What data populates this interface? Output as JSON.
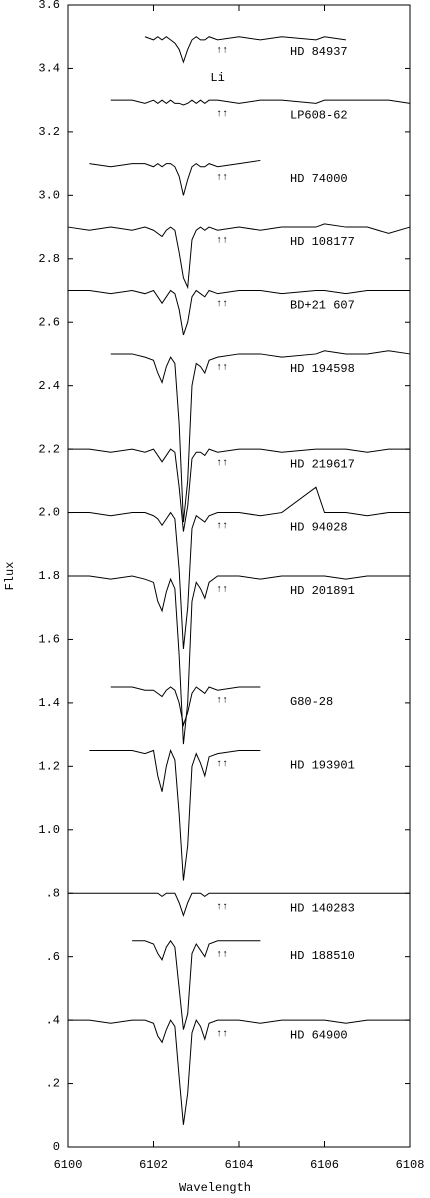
{
  "chart_data": {
    "type": "line",
    "xlabel": "Wavelength",
    "ylabel": "Flux",
    "xlim": [
      6100,
      6108
    ],
    "ylim": [
      0,
      3.6
    ],
    "xticks": [
      6100,
      6102,
      6104,
      6106,
      6108
    ],
    "yticks": [
      0,
      {
        "value": 0.2,
        "label": ".2"
      },
      {
        "value": 0.4,
        "label": ".4"
      },
      {
        "value": 0.6,
        "label": ".6"
      },
      {
        "value": 0.8,
        "label": ".8"
      },
      {
        "value": 1,
        "label": "1.0"
      },
      1.2,
      1.4,
      1.6,
      1.8,
      {
        "value": 2,
        "label": "2.0"
      },
      2.2,
      2.4,
      2.6,
      2.8,
      {
        "value": 3,
        "label": "3.0"
      },
      3.2,
      3.4,
      3.6
    ],
    "marker": "↑↑",
    "annotations": [
      {
        "text": "Li",
        "x": 6103.5,
        "y": 3.37
      }
    ],
    "color": "#000000",
    "x": [
      6100,
      6100.5,
      6101,
      6101.5,
      6101.8,
      6102.0,
      6102.1,
      6102.2,
      6102.3,
      6102.4,
      6102.5,
      6102.6,
      6102.7,
      6102.8,
      6102.9,
      6103.0,
      6103.1,
      6103.2,
      6103.3,
      6103.5,
      6104.0,
      6104.5,
      6105,
      6105.8,
      6106,
      6106.5,
      6107,
      6107.5,
      6108
    ],
    "series": [
      {
        "name": "HD 84937",
        "values": [
          null,
          null,
          null,
          null,
          3.5,
          3.49,
          3.5,
          3.49,
          3.5,
          3.49,
          3.48,
          3.46,
          3.42,
          3.46,
          3.49,
          3.5,
          3.49,
          3.49,
          3.5,
          3.49,
          3.5,
          3.49,
          3.5,
          3.49,
          3.5,
          3.49,
          null,
          null,
          null
        ]
      },
      {
        "name": "LP608-62",
        "values": [
          null,
          null,
          3.3,
          3.3,
          3.29,
          3.3,
          3.29,
          3.3,
          3.29,
          3.3,
          3.29,
          3.29,
          3.285,
          3.29,
          3.3,
          3.29,
          3.3,
          3.29,
          3.3,
          3.3,
          3.29,
          3.3,
          3.3,
          3.29,
          3.3,
          3.3,
          3.3,
          3.3,
          3.29
        ]
      },
      {
        "name": "HD 74000",
        "values": [
          null,
          3.1,
          3.09,
          3.1,
          3.1,
          3.09,
          3.1,
          3.09,
          3.1,
          3.1,
          3.09,
          3.06,
          3.0,
          3.05,
          3.09,
          3.1,
          3.09,
          3.09,
          3.1,
          3.09,
          3.1,
          3.11,
          null,
          null,
          null,
          null,
          null,
          null,
          null
        ]
      },
      {
        "name": "HD 108177",
        "values": [
          2.9,
          2.89,
          2.9,
          2.89,
          2.9,
          2.89,
          2.88,
          2.87,
          2.89,
          2.9,
          2.89,
          2.82,
          2.74,
          2.71,
          2.86,
          2.89,
          2.9,
          2.89,
          2.9,
          2.89,
          2.9,
          2.89,
          2.9,
          2.9,
          2.91,
          2.9,
          2.9,
          2.88,
          2.9
        ]
      },
      {
        "name": "BD+21 607",
        "values": [
          2.7,
          2.7,
          2.69,
          2.7,
          2.69,
          2.7,
          2.68,
          2.66,
          2.68,
          2.7,
          2.69,
          2.64,
          2.56,
          2.6,
          2.68,
          2.7,
          2.69,
          2.68,
          2.7,
          2.69,
          2.7,
          2.7,
          2.69,
          2.7,
          2.7,
          2.69,
          2.7,
          2.7,
          2.7
        ]
      },
      {
        "name": "HD 194598",
        "values": [
          null,
          null,
          2.5,
          2.5,
          2.49,
          2.48,
          2.44,
          2.41,
          2.46,
          2.49,
          2.47,
          2.28,
          1.97,
          2.1,
          2.4,
          2.47,
          2.46,
          2.44,
          2.48,
          2.49,
          2.5,
          2.5,
          2.49,
          2.5,
          2.51,
          2.5,
          2.5,
          2.51,
          2.5
        ]
      },
      {
        "name": "HD 219617",
        "values": [
          2.2,
          2.2,
          2.19,
          2.2,
          2.19,
          2.2,
          2.18,
          2.16,
          2.18,
          2.2,
          2.19,
          2.08,
          1.94,
          2.02,
          2.17,
          2.19,
          2.19,
          2.18,
          2.2,
          2.19,
          2.2,
          2.2,
          2.19,
          2.2,
          2.2,
          2.2,
          2.19,
          2.2,
          2.2
        ]
      },
      {
        "name": "HD 94028",
        "values": [
          2.0,
          2.0,
          1.99,
          2.0,
          2.0,
          1.99,
          1.98,
          1.96,
          1.98,
          2.0,
          1.98,
          1.82,
          1.57,
          1.7,
          1.95,
          1.99,
          1.98,
          1.97,
          1.99,
          2.0,
          2.0,
          1.99,
          2.0,
          2.08,
          2.0,
          2.0,
          1.99,
          2.0,
          2.0
        ]
      },
      {
        "name": "HD 201891",
        "values": [
          1.8,
          1.8,
          1.79,
          1.8,
          1.79,
          1.78,
          1.72,
          1.69,
          1.75,
          1.79,
          1.76,
          1.55,
          1.27,
          1.4,
          1.72,
          1.78,
          1.76,
          1.73,
          1.78,
          1.8,
          1.8,
          1.79,
          1.8,
          1.8,
          1.8,
          1.79,
          1.8,
          1.8,
          1.8
        ]
      },
      {
        "name": "G80-28",
        "values": [
          null,
          null,
          1.45,
          1.45,
          1.44,
          1.44,
          1.43,
          1.42,
          1.44,
          1.45,
          1.44,
          1.4,
          1.33,
          1.37,
          1.43,
          1.45,
          1.44,
          1.43,
          1.45,
          1.44,
          1.45,
          1.45,
          null,
          null,
          null,
          null,
          null,
          null,
          null
        ]
      },
      {
        "name": "HD 193901",
        "values": [
          null,
          1.25,
          1.25,
          1.25,
          1.24,
          1.25,
          1.17,
          1.12,
          1.2,
          1.25,
          1.22,
          1.05,
          0.84,
          0.95,
          1.2,
          1.24,
          1.21,
          1.17,
          1.23,
          1.24,
          1.25,
          1.25,
          null,
          null,
          null,
          null,
          null,
          null,
          null
        ]
      },
      {
        "name": "HD 140283",
        "values": [
          0.8,
          0.8,
          0.8,
          0.8,
          0.8,
          0.8,
          0.8,
          0.79,
          0.8,
          0.8,
          0.8,
          0.77,
          0.73,
          0.77,
          0.8,
          0.8,
          0.8,
          0.79,
          0.8,
          0.8,
          0.8,
          0.8,
          0.8,
          0.8,
          0.8,
          0.8,
          0.8,
          0.8,
          0.8
        ]
      },
      {
        "name": "HD 188510",
        "values": [
          null,
          null,
          null,
          0.65,
          0.65,
          0.64,
          0.61,
          0.59,
          0.63,
          0.65,
          0.63,
          0.5,
          0.37,
          0.42,
          0.61,
          0.64,
          0.62,
          0.6,
          0.64,
          0.65,
          0.65,
          0.65,
          null,
          null,
          null,
          null,
          null,
          null,
          null
        ]
      },
      {
        "name": "HD 64900",
        "values": [
          0.4,
          0.4,
          0.39,
          0.4,
          0.4,
          0.39,
          0.35,
          0.33,
          0.37,
          0.4,
          0.38,
          0.22,
          0.07,
          0.17,
          0.36,
          0.4,
          0.38,
          0.34,
          0.39,
          0.4,
          0.4,
          0.39,
          0.4,
          0.4,
          0.4,
          0.39,
          0.4,
          0.4,
          0.4
        ]
      }
    ]
  }
}
